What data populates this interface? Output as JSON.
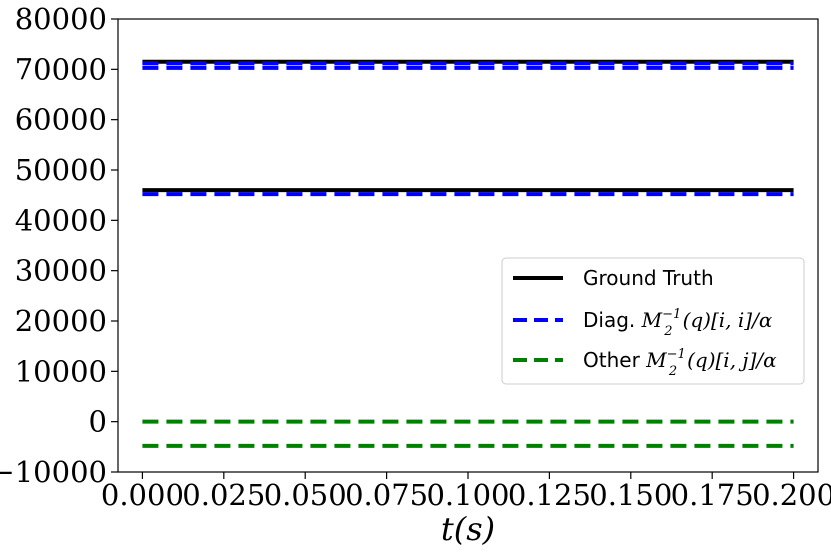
{
  "chart_data": {
    "type": "line",
    "title": "",
    "xlabel": "t(s)",
    "ylabel": "",
    "xlim": [
      -0.0075,
      0.2075
    ],
    "ylim": [
      -10000,
      80000
    ],
    "xticks": [
      0.0,
      0.025,
      0.05,
      0.075,
      0.1,
      0.125,
      0.15,
      0.175,
      0.2
    ],
    "xtick_labels": [
      "0.000",
      "0.025",
      "0.050",
      "0.075",
      "0.100",
      "0.125",
      "0.150",
      "0.175",
      "0.200"
    ],
    "yticks": [
      -10000,
      0,
      10000,
      20000,
      30000,
      40000,
      50000,
      60000,
      70000,
      80000
    ],
    "ytick_labels": [
      "−10000",
      "0",
      "10000",
      "20000",
      "30000",
      "40000",
      "50000",
      "60000",
      "70000",
      "80000"
    ],
    "grid": false,
    "legend_position": "center-right",
    "legend": [
      {
        "label": "Ground Truth",
        "color": "#000000",
        "style": "solid"
      },
      {
        "label": "Diag. M₂⁻¹(q)[i, i]/α",
        "color": "#0000ff",
        "style": "dashed"
      },
      {
        "label": "Other M₂⁻¹(q)[i, j]/α",
        "color": "#008000",
        "style": "dashed"
      }
    ],
    "x": [
      0.0,
      0.2
    ],
    "series": [
      {
        "group": "Ground Truth",
        "color": "#000000",
        "style": "solid",
        "values": [
          71500,
          71500
        ]
      },
      {
        "group": "Ground Truth",
        "color": "#000000",
        "style": "solid",
        "values": [
          46000,
          46000
        ]
      },
      {
        "group": "Diag",
        "color": "#0000ff",
        "style": "dashed",
        "values": [
          71200,
          71200
        ]
      },
      {
        "group": "Diag",
        "color": "#0000ff",
        "style": "dashed",
        "values": [
          70300,
          70300
        ]
      },
      {
        "group": "Diag",
        "color": "#0000ff",
        "style": "dashed",
        "values": [
          45200,
          45200
        ]
      },
      {
        "group": "Other",
        "color": "#008000",
        "style": "dashed",
        "values": [
          0,
          0
        ]
      },
      {
        "group": "Other",
        "color": "#008000",
        "style": "dashed",
        "values": [
          -4800,
          -4800
        ]
      }
    ]
  }
}
